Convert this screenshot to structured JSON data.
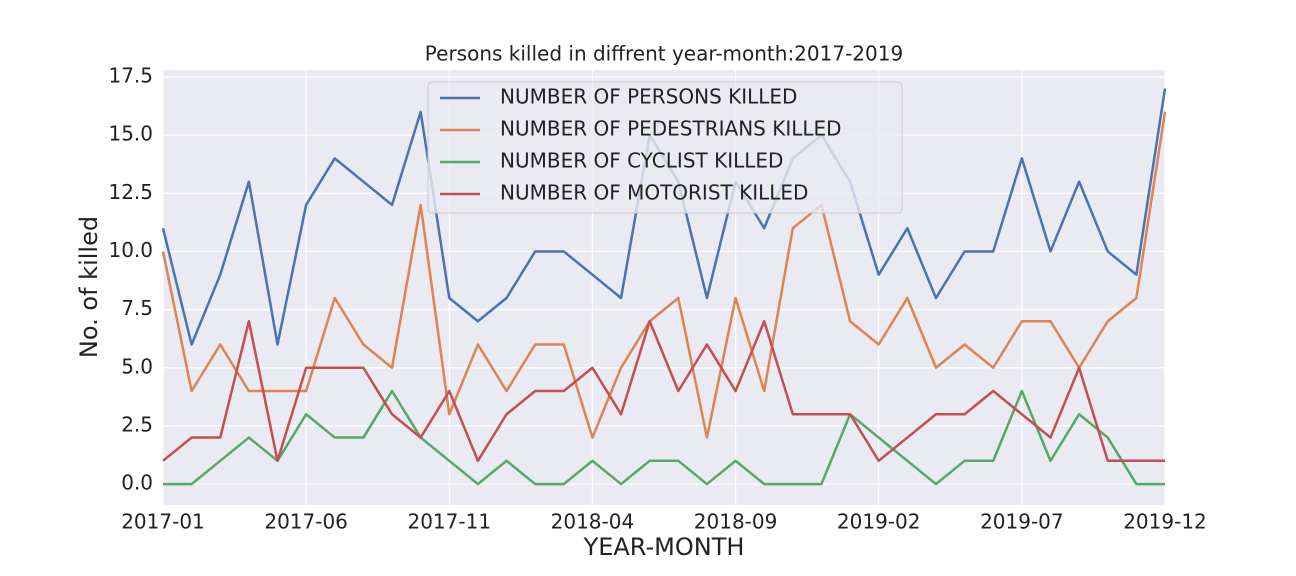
{
  "chart_data": {
    "type": "line",
    "title": "Persons killed in diffrent year-month:2017-2019",
    "x_label": "YEAR-MONTH",
    "y_label": "No. of killed",
    "x": [
      "2017-01",
      "2017-02",
      "2017-03",
      "2017-04",
      "2017-05",
      "2017-06",
      "2017-07",
      "2017-08",
      "2017-09",
      "2017-10",
      "2017-11",
      "2017-12",
      "2018-01",
      "2018-02",
      "2018-03",
      "2018-04",
      "2018-05",
      "2018-06",
      "2018-07",
      "2018-08",
      "2018-09",
      "2018-10",
      "2018-11",
      "2018-12",
      "2019-01",
      "2019-02",
      "2019-03",
      "2019-04",
      "2019-05",
      "2019-06",
      "2019-07",
      "2019-08",
      "2019-09",
      "2019-10",
      "2019-11",
      "2019-12"
    ],
    "xticks": [
      "2017-01",
      "2017-06",
      "2017-11",
      "2018-04",
      "2018-09",
      "2019-02",
      "2019-07",
      "2019-12"
    ],
    "series": [
      {
        "name": "NUMBER OF PERSONS KILLED",
        "color": "#4c72b0",
        "values": [
          11,
          6,
          9,
          13,
          6,
          12,
          14,
          13,
          12,
          16,
          8,
          7,
          8,
          10,
          10,
          9,
          8,
          15,
          13,
          8,
          13,
          11,
          14,
          15,
          13,
          9,
          11,
          8,
          10,
          10,
          14,
          10,
          13,
          10,
          9,
          17
        ]
      },
      {
        "name": "NUMBER OF PEDESTRIANS KILLED",
        "color": "#dd8452",
        "values": [
          10,
          4,
          6,
          4,
          4,
          4,
          8,
          6,
          5,
          12,
          3,
          6,
          4,
          6,
          6,
          2,
          5,
          7,
          8,
          2,
          8,
          4,
          11,
          12,
          7,
          6,
          8,
          5,
          6,
          5,
          7,
          7,
          5,
          7,
          8,
          16
        ]
      },
      {
        "name": "NUMBER OF CYCLIST KILLED",
        "color": "#55a868",
        "values": [
          0,
          0,
          1,
          2,
          1,
          3,
          2,
          2,
          4,
          2,
          1,
          0,
          1,
          0,
          0,
          1,
          0,
          1,
          1,
          0,
          1,
          0,
          0,
          0,
          3,
          2,
          1,
          0,
          1,
          1,
          4,
          1,
          3,
          2,
          0,
          0
        ]
      },
      {
        "name": "NUMBER OF MOTORIST KILLED",
        "color": "#c44e52",
        "values": [
          1,
          2,
          2,
          7,
          1,
          5,
          5,
          5,
          3,
          2,
          4,
          1,
          3,
          4,
          4,
          5,
          3,
          7,
          4,
          6,
          4,
          7,
          3,
          3,
          3,
          1,
          2,
          3,
          3,
          4,
          3,
          2,
          5,
          1,
          1,
          1
        ]
      }
    ],
    "ylim": [
      -0.9,
      17.8
    ],
    "yticks": [
      {
        "value": 0,
        "label": "0.0"
      },
      2.5,
      {
        "value": 5,
        "label": "5.0"
      },
      7.5,
      {
        "value": 10,
        "label": "10.0"
      },
      12.5,
      {
        "value": 15,
        "label": "15.0"
      },
      17.5
    ],
    "grid": true,
    "legend": "upper center"
  }
}
